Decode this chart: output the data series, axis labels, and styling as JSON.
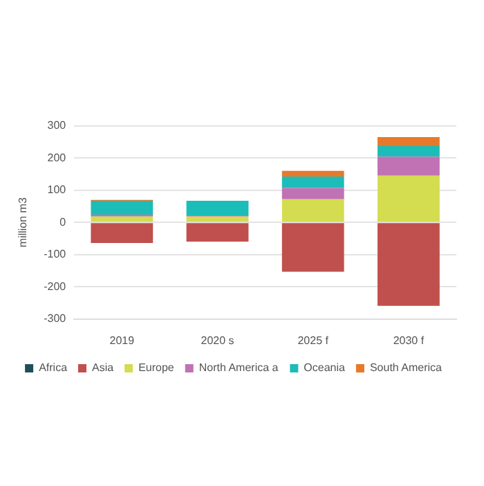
{
  "chart_data": {
    "type": "bar",
    "stacked": true,
    "ylabel": "million m3",
    "categories": [
      "2019",
      "2020 s",
      "2025 f",
      "2030 f"
    ],
    "series": [
      {
        "name": "Africa",
        "color": "#1f4e5a",
        "values": [
          0,
          0,
          0,
          0
        ]
      },
      {
        "name": "Asia",
        "color": "#c0504d",
        "values": [
          -64,
          -60,
          -153,
          -259
        ]
      },
      {
        "name": "Europe",
        "color": "#d4dc50",
        "values": [
          18,
          18,
          72,
          145
        ]
      },
      {
        "name": "North America a",
        "color": "#c072b4",
        "values": [
          6,
          4,
          35,
          59
        ]
      },
      {
        "name": "Oceania",
        "color": "#1cbdb8",
        "values": [
          43,
          45,
          35,
          33
        ]
      },
      {
        "name": "South America",
        "color": "#e8792a",
        "values": [
          3,
          null,
          18,
          28
        ]
      }
    ],
    "ylim": [
      -300,
      300
    ],
    "yticks": [
      -300,
      -200,
      -100,
      0,
      100,
      200,
      300
    ],
    "grid": "y",
    "legend": "bottom"
  }
}
